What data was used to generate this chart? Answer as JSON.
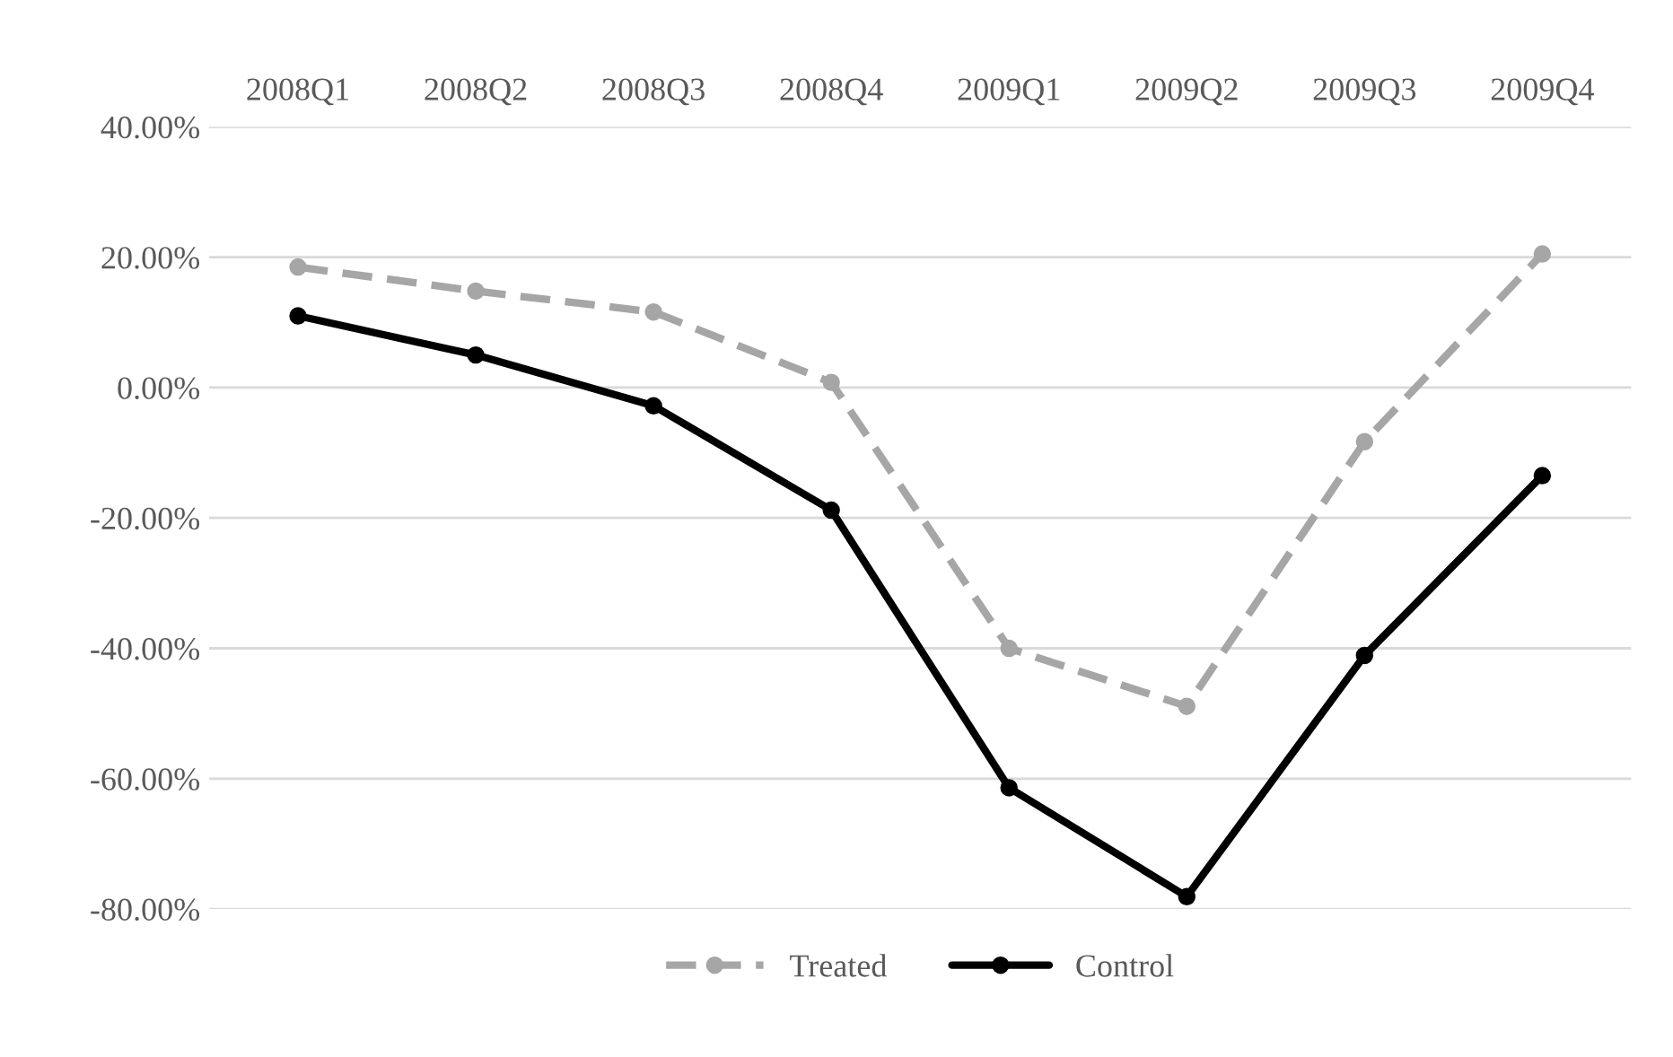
{
  "chart_data": {
    "type": "line",
    "categories": [
      "2008Q1",
      "2008Q2",
      "2008Q3",
      "2008Q4",
      "2009Q1",
      "2009Q2",
      "2009Q3",
      "2009Q4"
    ],
    "series": [
      {
        "name": "Treated",
        "color": "#a6a6a6",
        "line_style": "dashed",
        "values": [
          18.5,
          14.8,
          11.6,
          0.8,
          -40.0,
          -48.9,
          -8.3,
          20.5
        ]
      },
      {
        "name": "Control",
        "color": "#000000",
        "line_style": "solid",
        "values": [
          11.0,
          5.0,
          -2.8,
          -18.8,
          -61.4,
          -78.1,
          -41.1,
          -13.5
        ]
      }
    ],
    "ylim": [
      -80,
      40
    ],
    "yticks": [
      {
        "value": -80,
        "label": "-80.00%"
      },
      {
        "value": -60,
        "label": "-60.00%"
      },
      {
        "value": -40,
        "label": "-40.00%"
      },
      {
        "value": -20,
        "label": "-20.00%"
      },
      {
        "value": 0,
        "label": "0.00%"
      },
      {
        "value": 20,
        "label": "20.00%"
      },
      {
        "value": 40,
        "label": "40.00%"
      }
    ],
    "grid": "y",
    "legend": "bottom",
    "marker": "circle"
  }
}
